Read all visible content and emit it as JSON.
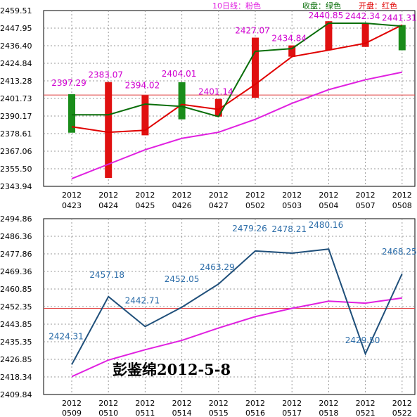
{
  "legend": {
    "ma10": "10日线：粉色",
    "close": "收盘：绿色",
    "open": "开盘：红色"
  },
  "signature": "彭鉴绵2012-5-8",
  "colors": {
    "ma10": "#e020e0",
    "close": "#0a6e0a",
    "open": "#e00000",
    "up_candle": "#1a8c1a",
    "down_candle": "#e01010",
    "upper_label": "#d000d0",
    "lower_line": "#1f4f7a",
    "lower_label": "#2b6ca8",
    "ref_line": "#e04040",
    "grid": "#9a9a9a"
  },
  "chart_data": [
    {
      "type": "candlestick",
      "title": "",
      "xlabel": "",
      "ylabel": "",
      "ylim": [
        2343.94,
        2459.51
      ],
      "y_ticks": [
        "2459.51",
        "2447.95",
        "2436.40",
        "2424.84",
        "2413.28",
        "2401.73",
        "2390.17",
        "2378.61",
        "2367.06",
        "2355.50",
        "2343.94"
      ],
      "categories": [
        {
          "year": "2012",
          "date": "0423"
        },
        {
          "year": "2012",
          "date": "0424"
        },
        {
          "year": "2012",
          "date": "0425"
        },
        {
          "year": "2012",
          "date": "0426"
        },
        {
          "year": "2012",
          "date": "0427"
        },
        {
          "year": "2012",
          "date": "0502"
        },
        {
          "year": "2012",
          "date": "0503"
        },
        {
          "year": "2012",
          "date": "0504"
        },
        {
          "year": "2012",
          "date": "0507"
        },
        {
          "year": "2012",
          "date": "0508"
        }
      ],
      "open": [
        2383.1,
        2379.5,
        2380.8,
        2397.8,
        2394.5,
        2411.0,
        2429.2,
        2433.5,
        2438.0,
        2450.0
      ],
      "close": [
        2391.0,
        2391.0,
        2398.0,
        2396.5,
        2389.8,
        2432.7,
        2434.5,
        2451.2,
        2451.2,
        2449.2
      ],
      "candle_top": [
        2404.5,
        2412.5,
        2403.8,
        2412.4,
        2401.4,
        2441.7,
        2436.6,
        2452.5,
        2451.2,
        2450.0
      ],
      "candle_bottom": [
        2379.2,
        2349.5,
        2377.5,
        2388.0,
        2389.8,
        2402.2,
        2429.2,
        2433.5,
        2435.6,
        2433.4
      ],
      "candle_color": [
        "up",
        "down",
        "down",
        "up",
        "down",
        "down",
        "down",
        "down",
        "down",
        "up"
      ],
      "ma10": [
        2349.0,
        2358.5,
        2368.0,
        2375.5,
        2379.5,
        2388.0,
        2398.5,
        2407.5,
        2414.0,
        2419.0
      ],
      "data_labels": [
        "2397.29",
        "2383.07",
        "2394.02",
        "2404.01",
        "2401.14",
        "2427.07",
        "2434.84",
        "2440.85",
        "2442.34",
        "2441.31"
      ],
      "ref_line": 2404.0,
      "grid": true
    },
    {
      "type": "line",
      "title": "",
      "xlabel": "",
      "ylabel": "",
      "ylim": [
        2409.84,
        2494.86
      ],
      "y_ticks": [
        "2494.86",
        "2486.36",
        "2477.86",
        "2469.36",
        "2460.85",
        "2452.35",
        "2443.85",
        "2435.35",
        "2426.85",
        "2418.34",
        "2409.84"
      ],
      "categories": [
        {
          "year": "2012",
          "date": "0509"
        },
        {
          "year": "2012",
          "date": "0510"
        },
        {
          "year": "2012",
          "date": "0511"
        },
        {
          "year": "2012",
          "date": "0514"
        },
        {
          "year": "2012",
          "date": "0515"
        },
        {
          "year": "2012",
          "date": "0516"
        },
        {
          "year": "2012",
          "date": "0517"
        },
        {
          "year": "2012",
          "date": "0518"
        },
        {
          "year": "2012",
          "date": "0521"
        },
        {
          "year": "2012",
          "date": "0522"
        }
      ],
      "series": [
        {
          "values": [
            2424.31,
            2457.18,
            2442.71,
            2452.05,
            2463.29,
            2479.26,
            2478.21,
            2480.16,
            2429.5,
            2468.25
          ]
        },
        {
          "values": [
            2418.5,
            2426.5,
            2431.5,
            2436.0,
            2442.0,
            2447.5,
            2451.5,
            2455.0,
            2454.0,
            2456.5
          ]
        }
      ],
      "data_labels": [
        "2424.31",
        "2457.18",
        "2442.71",
        "2452.05",
        "2463.29",
        "2479.26",
        "2478.21",
        "2480.16",
        "2429.50",
        "2468.25"
      ],
      "ref_line": 2451.5,
      "grid": true
    }
  ]
}
